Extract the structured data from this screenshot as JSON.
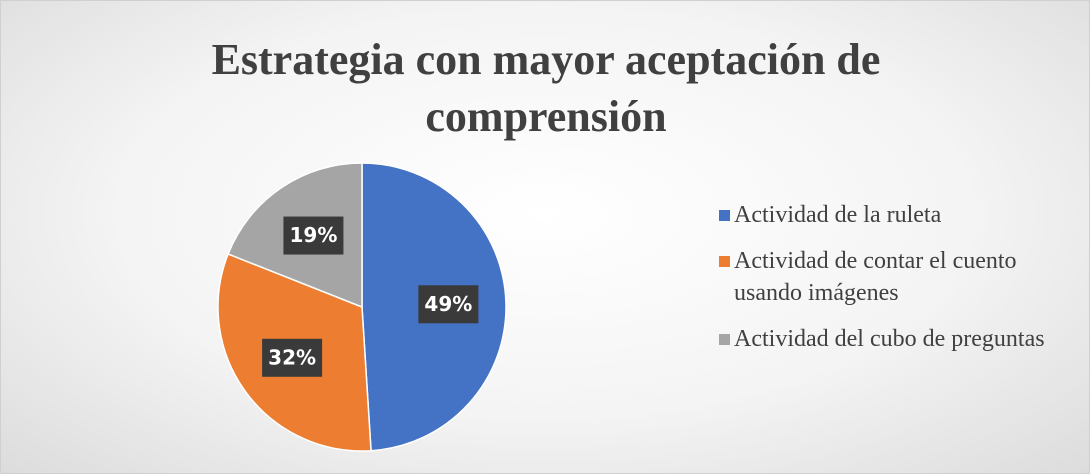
{
  "chart_data": {
    "type": "pie",
    "title": "Estrategia con mayor aceptación de comprensión",
    "categories": [
      "Actividad de la ruleta",
      "Actividad de contar el cuento usando imágenes",
      "Actividad del cubo de preguntas"
    ],
    "values": [
      49,
      32,
      19
    ],
    "value_labels": [
      "49%",
      "32%",
      "19%"
    ],
    "colors": [
      "#4472c4",
      "#ed7d31",
      "#a5a5a5"
    ],
    "legend": "right"
  }
}
